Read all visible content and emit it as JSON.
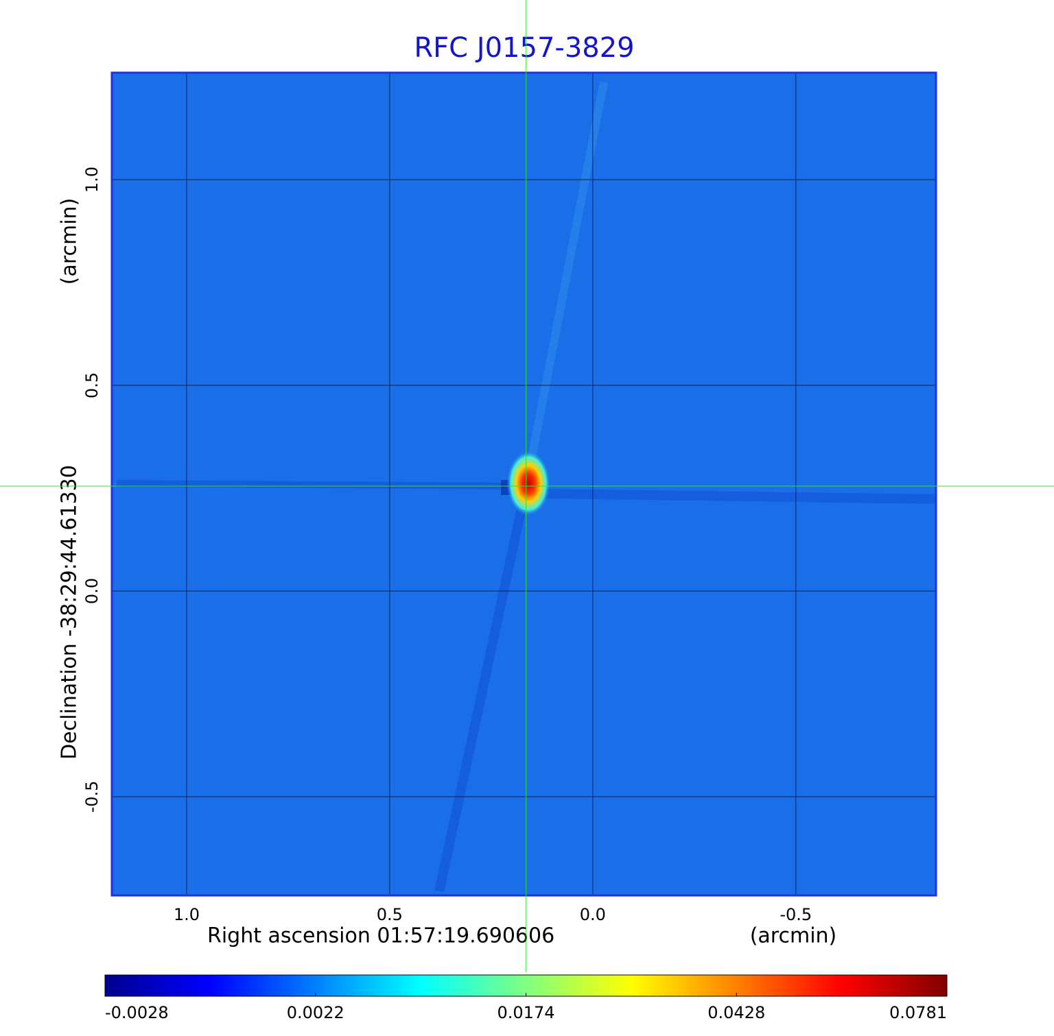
{
  "chart_data": {
    "type": "image",
    "title": "RFC J0157-3829",
    "x_label": "Right ascension  01:57:19.690606",
    "x_unit": "(arcmin)",
    "y_label": "Declination  -38:29:44.61330",
    "y_unit": "(arcmin)",
    "xlim": [
      1.184,
      -0.845
    ],
    "ylim": [
      -0.74,
      1.26
    ],
    "xticks": [
      {
        "value": 1,
        "label": "1.0"
      },
      {
        "value": 0.5,
        "label": "0.5"
      },
      {
        "value": 0,
        "label": "0.0"
      },
      {
        "value": -0.5,
        "label": "-0.5"
      }
    ],
    "yticks": [
      {
        "value": -0.5,
        "label": "-0.5"
      },
      {
        "value": 0,
        "label": "0.0"
      },
      {
        "value": 0.5,
        "label": "0.5"
      },
      {
        "value": 1,
        "label": "1.0"
      }
    ],
    "grid": true,
    "crosshair": {
      "x": 0.164,
      "y": 0.255,
      "color": "#33dd33"
    },
    "colorbar_ticks": [
      -0.0028,
      0.0022,
      0.0174,
      0.0428,
      0.0781
    ],
    "colormap": [
      "#00008f",
      "#0000ff",
      "#0080ff",
      "#00ffff",
      "#80ff80",
      "#ffff00",
      "#ff8000",
      "#ff0000",
      "#800000"
    ]
  }
}
